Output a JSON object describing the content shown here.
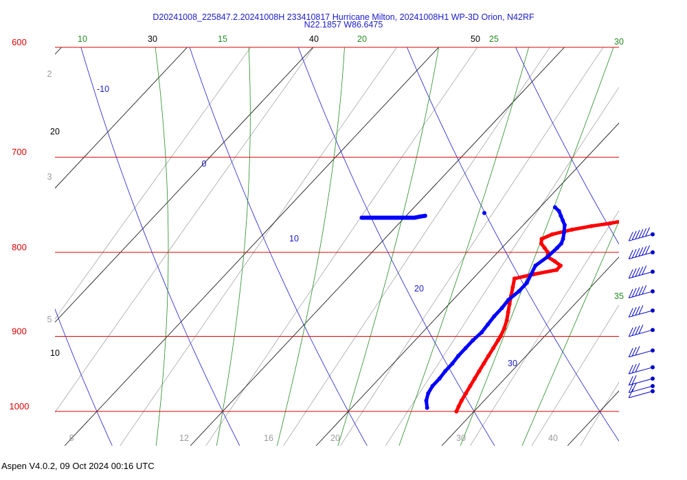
{
  "title": {
    "line1": "D20241008_225847.2.20241008H 233410817 Hurricane Milton, 20241008H1 WP-3D Orion, N42RF",
    "line2": "N22.1857 W86.6475"
  },
  "footer": "Aspen V4.0.2, 09 Oct 2024  00:16 UTC",
  "colors": {
    "isobar": "#dd0000",
    "dry_adiabat": "#1a1acc",
    "moist_adiabat": "#228b22",
    "mixing_ratio": "#9a9a9a",
    "isotherm": "#000000",
    "temperature": "#ff0000",
    "dewpoint": "#0000ff",
    "wind": "#0000cc"
  },
  "chart_data": {
    "type": "skew-t",
    "title": "D20241008_225847.2.20241008H 233410817 Hurricane Milton, 20241008H1 WP-3D Orion, N42RF",
    "subtitle": "N22.1857 W86.6475",
    "pressure_ylim": [
      1050,
      600
    ],
    "isobar_labels": [
      "600",
      "700",
      "800",
      "900",
      "1000"
    ],
    "isotherm_labels": [
      "10",
      "20",
      "30",
      "40",
      "50"
    ],
    "dry_adiabat_labels": [
      "-10",
      "0",
      "10",
      "20",
      "30"
    ],
    "moist_adiabat_labels": [
      "10",
      "15",
      "20",
      "25",
      "30",
      "35"
    ],
    "mixing_ratio_labels": [
      "2",
      "3",
      "5",
      "8",
      "12",
      "16",
      "20",
      "30",
      "40"
    ],
    "grid": true,
    "series": [
      {
        "name": "",
        "kind": "temperature",
        "points": [
          {
            "p": 1000,
            "t": 28.6
          },
          {
            "p": 993,
            "t": 28.4
          },
          {
            "p": 985,
            "t": 28.2
          },
          {
            "p": 975,
            "t": 28.0
          },
          {
            "p": 965,
            "t": 27.8
          },
          {
            "p": 955,
            "t": 27.6
          },
          {
            "p": 945,
            "t": 27.4
          },
          {
            "p": 935,
            "t": 27.2
          },
          {
            "p": 925,
            "t": 27.0
          },
          {
            "p": 915,
            "t": 26.8
          },
          {
            "p": 905,
            "t": 26.6
          },
          {
            "p": 900,
            "t": 26.5
          },
          {
            "p": 890,
            "t": 26.2
          },
          {
            "p": 880,
            "t": 25.8
          },
          {
            "p": 870,
            "t": 25.3
          },
          {
            "p": 860,
            "t": 24.8
          },
          {
            "p": 850,
            "t": 24.3
          },
          {
            "p": 840,
            "t": 23.8
          },
          {
            "p": 830,
            "t": 23.3
          },
          {
            "p": 825,
            "t": 24.5
          },
          {
            "p": 820,
            "t": 26.0
          },
          {
            "p": 815,
            "t": 26.0
          },
          {
            "p": 810,
            "t": 25.2
          },
          {
            "p": 805,
            "t": 24.3
          },
          {
            "p": 800,
            "t": 24.0
          },
          {
            "p": 795,
            "t": 23.4
          },
          {
            "p": 790,
            "t": 22.8
          },
          {
            "p": 785,
            "t": 22.5
          },
          {
            "p": 780,
            "t": 23.0
          },
          {
            "p": 775,
            "t": 24.2
          },
          {
            "p": 771,
            "t": 25.5
          },
          {
            "p": 768,
            "t": 26.8
          },
          {
            "p": 765,
            "t": 27.8
          },
          {
            "p": 760,
            "t": 28.5
          },
          {
            "p": 756,
            "t": 29.0
          },
          {
            "p": 754,
            "t": 29.5
          },
          {
            "p": 752,
            "t": 30.2
          },
          {
            "p": 752,
            "t": 31.2
          },
          {
            "p": 752,
            "t": 32.5
          },
          {
            "p": 752,
            "t": 33.5
          },
          {
            "p": 754,
            "t": 34.8
          },
          {
            "p": 757,
            "t": 35.3
          },
          {
            "p": 759,
            "t": 35.0
          },
          {
            "p": 758,
            "t": 34.5
          }
        ]
      },
      {
        "name": "",
        "kind": "dewpoint",
        "points": [
          {
            "p": 995,
            "t": 26.0
          },
          {
            "p": 985,
            "t": 25.4
          },
          {
            "p": 975,
            "t": 25.0
          },
          {
            "p": 965,
            "t": 24.8
          },
          {
            "p": 955,
            "t": 24.8
          },
          {
            "p": 945,
            "t": 24.7
          },
          {
            "p": 935,
            "t": 24.7
          },
          {
            "p": 925,
            "t": 24.6
          },
          {
            "p": 915,
            "t": 24.6
          },
          {
            "p": 905,
            "t": 24.6
          },
          {
            "p": 895,
            "t": 24.7
          },
          {
            "p": 885,
            "t": 24.6
          },
          {
            "p": 875,
            "t": 24.5
          },
          {
            "p": 865,
            "t": 24.5
          },
          {
            "p": 855,
            "t": 24.4
          },
          {
            "p": 845,
            "t": 24.6
          },
          {
            "p": 835,
            "t": 24.6
          },
          {
            "p": 825,
            "t": 24.3
          },
          {
            "p": 815,
            "t": 24.0
          },
          {
            "p": 805,
            "t": 24.3
          },
          {
            "p": 795,
            "t": 24.4
          },
          {
            "p": 790,
            "t": 24.4
          },
          {
            "p": 785,
            "t": 24.2
          },
          {
            "p": 778,
            "t": 23.8
          },
          {
            "p": 770,
            "t": 23.3
          },
          {
            "p": 765,
            "t": 22.8
          },
          {
            "p": 760,
            "t": 22.3
          },
          {
            "p": 755,
            "t": 21.8
          },
          {
            "p": 751,
            "t": 21.2
          }
        ]
      },
      {
        "name": "",
        "kind": "dewpoint-upper",
        "points": [
          {
            "p": 762,
            "t": 6.6
          },
          {
            "p": 762,
            "t": 7.0
          },
          {
            "p": 762,
            "t": 7.5
          },
          {
            "p": 762,
            "t": 8.0
          },
          {
            "p": 762,
            "t": 8.5
          },
          {
            "p": 762,
            "t": 9.0
          },
          {
            "p": 762,
            "t": 9.5
          },
          {
            "p": 762,
            "t": 10.0
          },
          {
            "p": 762,
            "t": 10.4
          },
          {
            "p": 762,
            "t": 10.8
          },
          {
            "p": 761,
            "t": 11.1
          },
          {
            "p": 760,
            "t": 11.5
          },
          {
            "p": 757,
            "t": 16.0
          }
        ]
      }
    ],
    "wind_barbs": [
      {
        "p": 780,
        "speed_kt": 60
      },
      {
        "p": 800,
        "speed_kt": 55
      },
      {
        "p": 822,
        "speed_kt": 50
      },
      {
        "p": 845,
        "speed_kt": 45
      },
      {
        "p": 868,
        "speed_kt": 40
      },
      {
        "p": 892,
        "speed_kt": 35
      },
      {
        "p": 918,
        "speed_kt": 30
      },
      {
        "p": 940,
        "speed_kt": 25
      },
      {
        "p": 955,
        "speed_kt": 20
      },
      {
        "p": 965,
        "speed_kt": 15
      },
      {
        "p": 972,
        "speed_kt": 10
      }
    ]
  }
}
